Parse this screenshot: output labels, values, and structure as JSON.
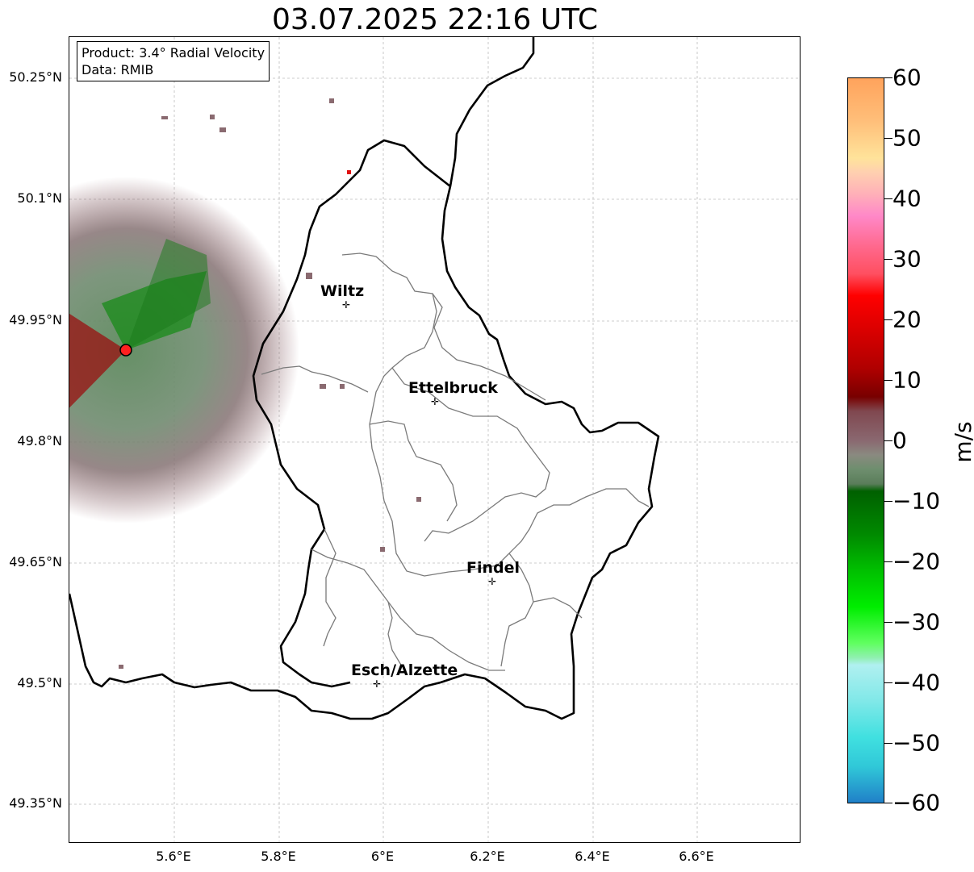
{
  "title": "03.07.2025 22:16 UTC",
  "info": {
    "product": "Product: 3.4° Radial Velocity",
    "data_source": "Data: RMIB"
  },
  "y_ticks": [
    "50.25°N",
    "50.1°N",
    "49.95°N",
    "49.8°N",
    "49.65°N",
    "49.5°N",
    "49.35°N"
  ],
  "x_ticks": [
    "5.6°E",
    "5.8°E",
    "6°E",
    "6.2°E",
    "6.4°E",
    "6.6°E"
  ],
  "cities": [
    {
      "name": "Wiltz",
      "lon": 5.93,
      "lat": 49.97
    },
    {
      "name": "Ettelbruck",
      "lon": 6.1,
      "lat": 49.85
    },
    {
      "name": "Findel",
      "lon": 6.21,
      "lat": 49.627
    },
    {
      "name": "Esch/Alzette",
      "lon": 5.99,
      "lat": 49.5
    }
  ],
  "colorbar": {
    "unit": "m/s",
    "min": -60,
    "max": 60,
    "ticks": [
      "60",
      "50",
      "40",
      "30",
      "20",
      "10",
      "0",
      "−10",
      "−20",
      "−30",
      "−40",
      "−50",
      "−60"
    ]
  },
  "colors": {
    "border": "#000000",
    "canton_lines": "#808080",
    "gridlines": "#c0c0c0"
  }
}
